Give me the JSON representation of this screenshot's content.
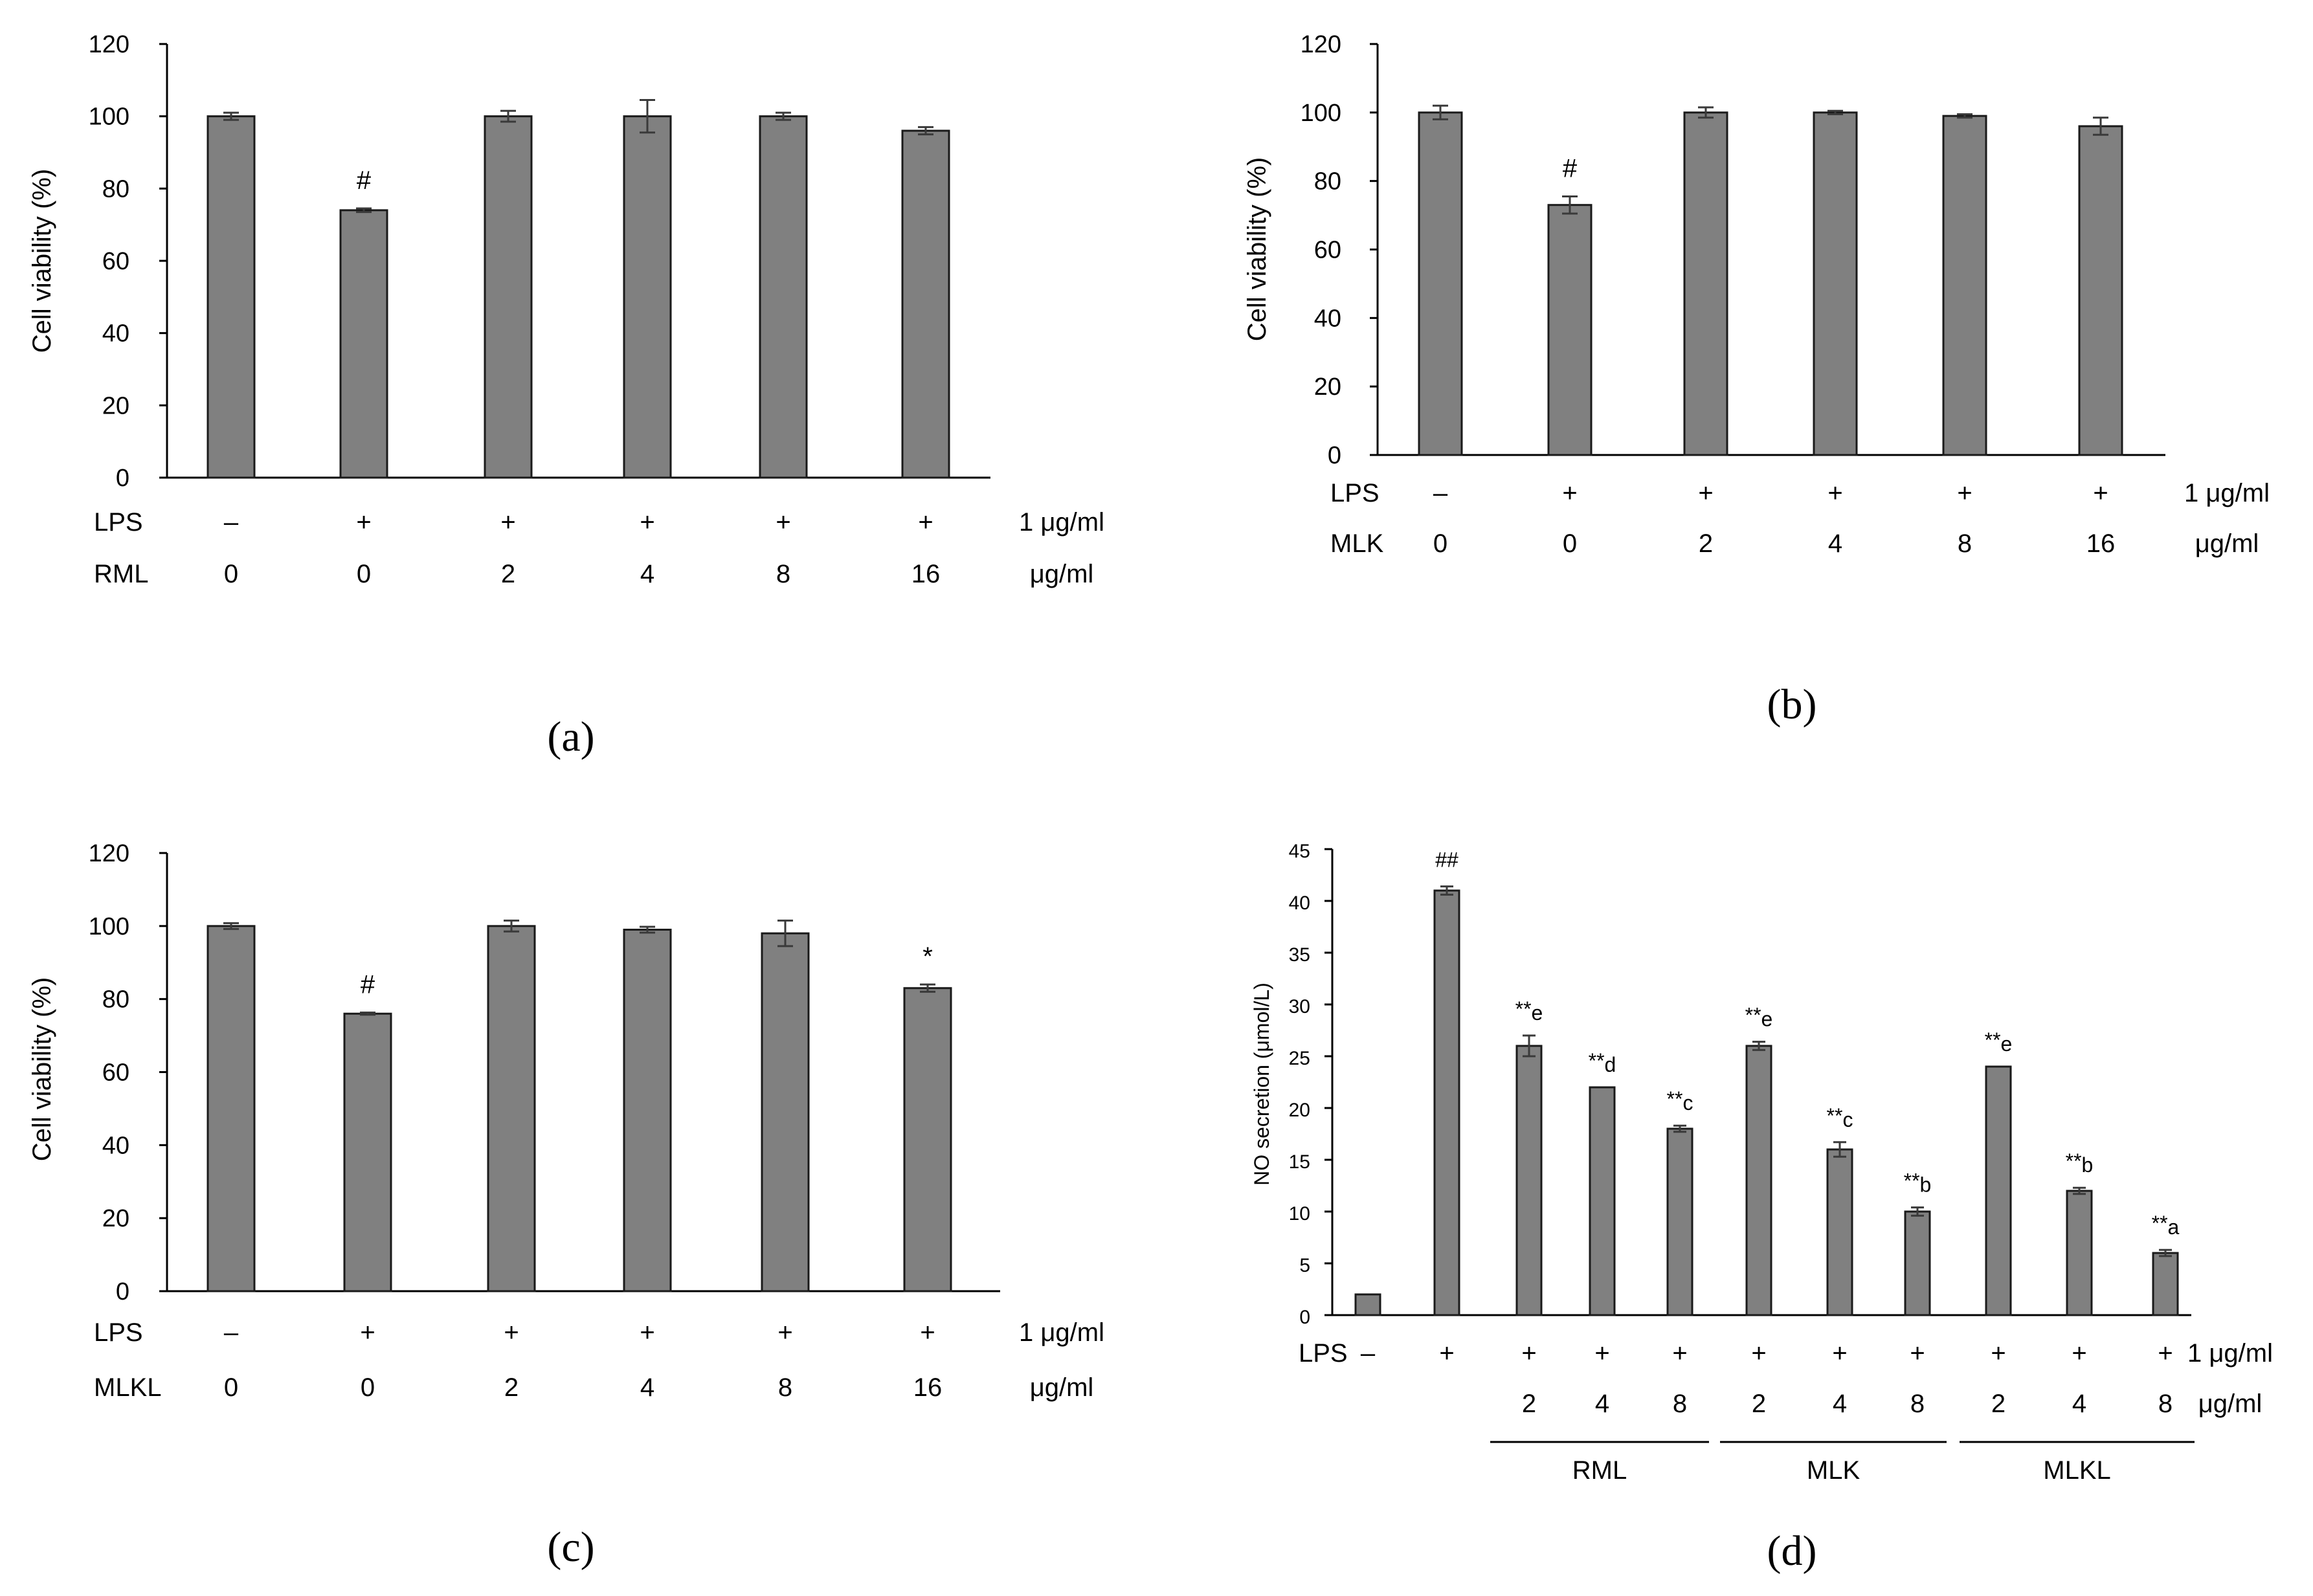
{
  "chart_data": [
    {
      "panel": "(a)",
      "type": "bar",
      "ylabel": "Cell viability (%)",
      "ylim": [
        0,
        120
      ],
      "yticks": [
        0,
        20,
        40,
        60,
        80,
        100,
        120
      ],
      "rows": [
        {
          "label": "LPS",
          "values": [
            "–",
            "+",
            "+",
            "+",
            "+",
            "+"
          ],
          "unit": "1 μg/ml"
        },
        {
          "label": "RML",
          "values": [
            "0",
            "0",
            "2",
            "4",
            "8",
            "16"
          ],
          "unit": "μg/ml"
        }
      ],
      "values": [
        100,
        74,
        100,
        100,
        100,
        96
      ],
      "errors": [
        1,
        0.5,
        1.5,
        4.5,
        1,
        1
      ],
      "annotations": [
        "",
        "#",
        "",
        "",
        "",
        ""
      ]
    },
    {
      "panel": "(b)",
      "type": "bar",
      "ylabel": "Cell viability (%)",
      "ylim": [
        0,
        120
      ],
      "yticks": [
        0,
        20,
        40,
        60,
        80,
        100,
        120
      ],
      "rows": [
        {
          "label": "LPS",
          "values": [
            "–",
            "+",
            "+",
            "+",
            "+",
            "+"
          ],
          "unit": "1 μg/ml"
        },
        {
          "label": "MLK",
          "values": [
            "0",
            "0",
            "2",
            "4",
            "8",
            "16"
          ],
          "unit": "μg/ml"
        }
      ],
      "values": [
        100,
        73,
        100,
        100,
        99,
        96
      ],
      "errors": [
        2,
        2.5,
        1.5,
        0.5,
        0.5,
        2.5
      ],
      "annotations": [
        "",
        "#",
        "",
        "",
        "",
        ""
      ]
    },
    {
      "panel": "(c)",
      "type": "bar",
      "ylabel": "Cell viability (%)",
      "ylim": [
        0,
        120
      ],
      "yticks": [
        0,
        20,
        40,
        60,
        80,
        100,
        120
      ],
      "rows": [
        {
          "label": "LPS",
          "values": [
            "–",
            "+",
            "+",
            "+",
            "+",
            "+"
          ],
          "unit": "1 μg/ml"
        },
        {
          "label": "MLKL",
          "values": [
            "0",
            "0",
            "2",
            "4",
            "8",
            "16"
          ],
          "unit": "μg/ml"
        }
      ],
      "values": [
        100,
        76,
        100,
        99,
        98,
        83
      ],
      "errors": [
        0.8,
        0.3,
        1.5,
        0.8,
        3.5,
        1
      ],
      "annotations": [
        "",
        "#",
        "",
        "",
        "",
        "*"
      ]
    },
    {
      "panel": "(d)",
      "type": "bar",
      "ylabel": "NO secretion (μmol/L)",
      "ylim": [
        0,
        45
      ],
      "yticks": [
        0,
        5,
        10,
        15,
        20,
        25,
        30,
        35,
        40,
        45
      ],
      "rows": [
        {
          "label": "LPS",
          "values": [
            "–",
            "+",
            "+",
            "+",
            "+",
            "+",
            "+",
            "+",
            "+",
            "+",
            "+"
          ],
          "unit": "1 μg/ml"
        },
        {
          "label": "",
          "values": [
            "",
            "",
            "2",
            "4",
            "8",
            "2",
            "4",
            "8",
            "2",
            "4",
            "8"
          ],
          "unit": "μg/ml"
        }
      ],
      "groups": [
        {
          "label": "RML",
          "start": 2,
          "end": 4
        },
        {
          "label": "MLK",
          "start": 5,
          "end": 7
        },
        {
          "label": "MLKL",
          "start": 8,
          "end": 10
        }
      ],
      "values": [
        2,
        41,
        26,
        22,
        18,
        26,
        16,
        10,
        24,
        12,
        6
      ],
      "errors": [
        0,
        0.4,
        1,
        0,
        0.3,
        0.4,
        0.7,
        0.4,
        0,
        0.3,
        0.3
      ],
      "annotations": [
        {
          "main": "",
          "sup": ""
        },
        {
          "main": "##",
          "sup": ""
        },
        {
          "main": "**",
          "sup": "e"
        },
        {
          "main": "**",
          "sup": "d"
        },
        {
          "main": "**",
          "sup": "c"
        },
        {
          "main": "**",
          "sup": "e"
        },
        {
          "main": "**",
          "sup": "c"
        },
        {
          "main": "**",
          "sup": "b"
        },
        {
          "main": "**",
          "sup": "e"
        },
        {
          "main": "**",
          "sup": "b"
        },
        {
          "main": "**",
          "sup": "a"
        }
      ]
    }
  ]
}
